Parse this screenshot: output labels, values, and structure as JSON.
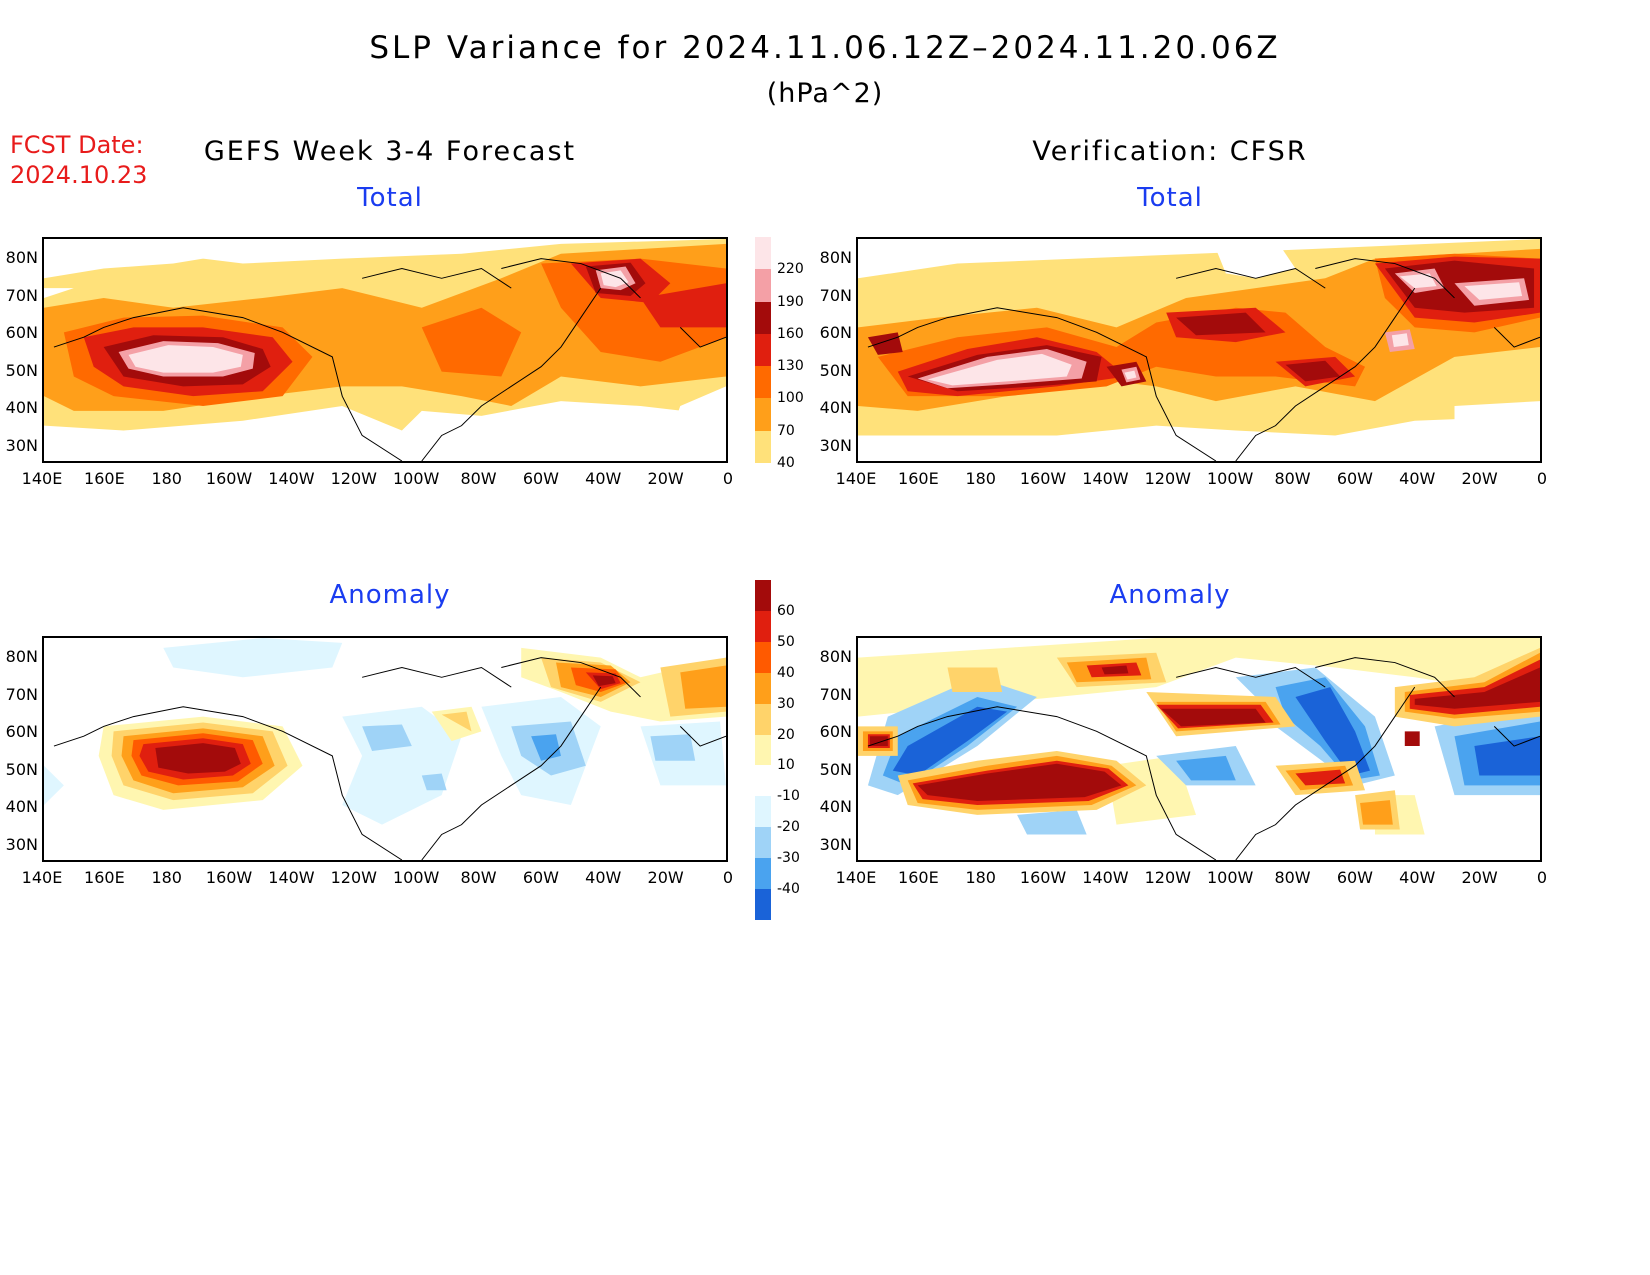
{
  "header": {
    "title": "SLP Variance for 2024.11.06.12Z–2024.11.20.06Z",
    "units": "(hPa^2)",
    "fcst_label": "FCST Date:",
    "fcst_date": "2024.10.23"
  },
  "columns": {
    "left": "GEFS Week 3-4 Forecast",
    "right": "Verification: CFSR"
  },
  "panels": {
    "total": "Total",
    "anomaly": "Anomaly"
  },
  "axes": {
    "lat_labels": [
      "80N",
      "70N",
      "60N",
      "50N",
      "40N",
      "30N"
    ],
    "lon_labels": [
      "140E",
      "160E",
      "180",
      "160W",
      "140W",
      "120W",
      "100W",
      "80W",
      "60W",
      "40W",
      "20W",
      "0"
    ]
  },
  "colorbar_total": {
    "labels": [
      "220",
      "190",
      "160",
      "130",
      "100",
      "70",
      "40"
    ],
    "colors": [
      "#fde5e8",
      "#f4a0a6",
      "#a30b0b",
      "#e01f0f",
      "#ff6a00",
      "#ff9f1a",
      "#ffe17a"
    ]
  },
  "colorbar_anomaly": {
    "labels": [
      "60",
      "50",
      "40",
      "30",
      "20",
      "10",
      "-10",
      "-20",
      "-30",
      "-40"
    ],
    "colors": [
      "#a30b0b",
      "#e01f0f",
      "#ff5a00",
      "#ff9f1a",
      "#ffd36a",
      "#fff6b0",
      "#ffffff",
      "#dff6ff",
      "#9fd3f7",
      "#4aa3ef",
      "#1a63d8"
    ]
  },
  "colors": {
    "title_blue": "#1a3cf0",
    "fcst_red": "#e81b1b"
  }
}
